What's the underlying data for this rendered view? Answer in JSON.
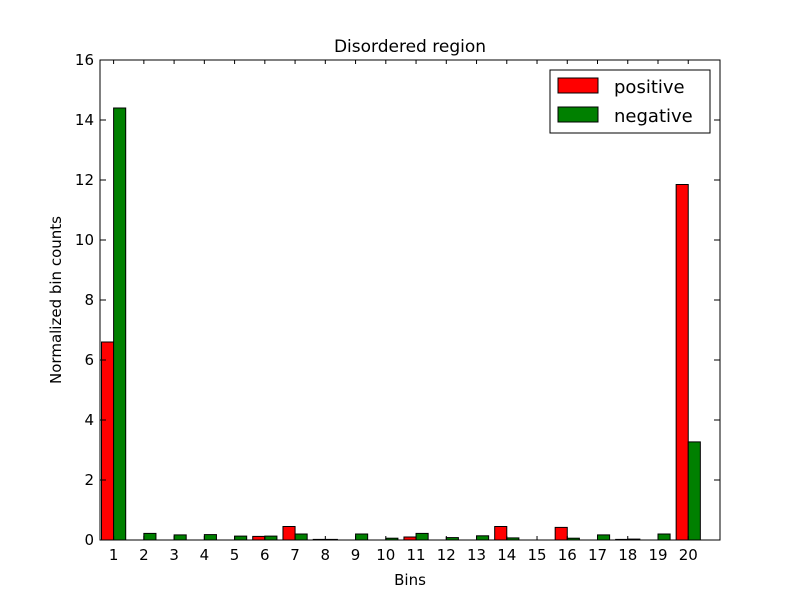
{
  "chart_data": {
    "type": "bar",
    "title": "Disordered region",
    "xlabel": "Bins",
    "ylabel": "Normalized bin counts",
    "ylim": [
      0,
      16
    ],
    "yticks": [
      0,
      2,
      4,
      6,
      8,
      10,
      12,
      14,
      16
    ],
    "grid": false,
    "legend_position": "top-right",
    "categories": [
      "1",
      "2",
      "3",
      "4",
      "5",
      "6",
      "7",
      "8",
      "9",
      "10",
      "11",
      "12",
      "13",
      "14",
      "15",
      "16",
      "17",
      "18",
      "19",
      "20"
    ],
    "series": [
      {
        "name": "positive",
        "color": "#ff0000",
        "values": [
          6.6,
          0.0,
          0.0,
          0.0,
          0.0,
          0.12,
          0.45,
          0.02,
          0.0,
          0.0,
          0.1,
          0.0,
          0.0,
          0.45,
          0.0,
          0.42,
          0.0,
          0.02,
          0.0,
          11.85
        ]
      },
      {
        "name": "negative",
        "color": "#008000",
        "values": [
          14.4,
          0.22,
          0.17,
          0.18,
          0.13,
          0.13,
          0.2,
          0.02,
          0.2,
          0.06,
          0.22,
          0.08,
          0.14,
          0.07,
          0.0,
          0.06,
          0.17,
          0.03,
          0.2,
          3.27
        ]
      }
    ]
  }
}
